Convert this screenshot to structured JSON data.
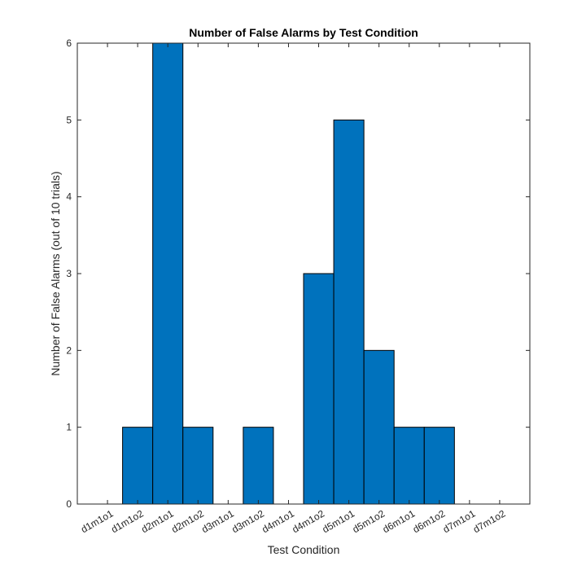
{
  "chart_data": {
    "type": "bar",
    "title": "Number of False Alarms by Test Condition",
    "xlabel": "Test Condition",
    "ylabel": "Number of False Alarms (out of 10 trials)",
    "categories": [
      "d1m1o1",
      "d1m1o2",
      "d2m1o1",
      "d2m1o2",
      "d3m1o1",
      "d3m1o2",
      "d4m1o1",
      "d4m1o2",
      "d5m1o1",
      "d5m1o2",
      "d6m1o1",
      "d6m1o2",
      "d7m1o1",
      "d7m1o2"
    ],
    "values": [
      0,
      1,
      6,
      1,
      0,
      1,
      0,
      3,
      5,
      2,
      1,
      1,
      0,
      0
    ],
    "ylim": [
      0,
      6
    ],
    "yticks": [
      0,
      1,
      2,
      3,
      4,
      5,
      6
    ],
    "grid": false,
    "bar_color": "#0072BD",
    "bar_edge_color": "#000000"
  }
}
